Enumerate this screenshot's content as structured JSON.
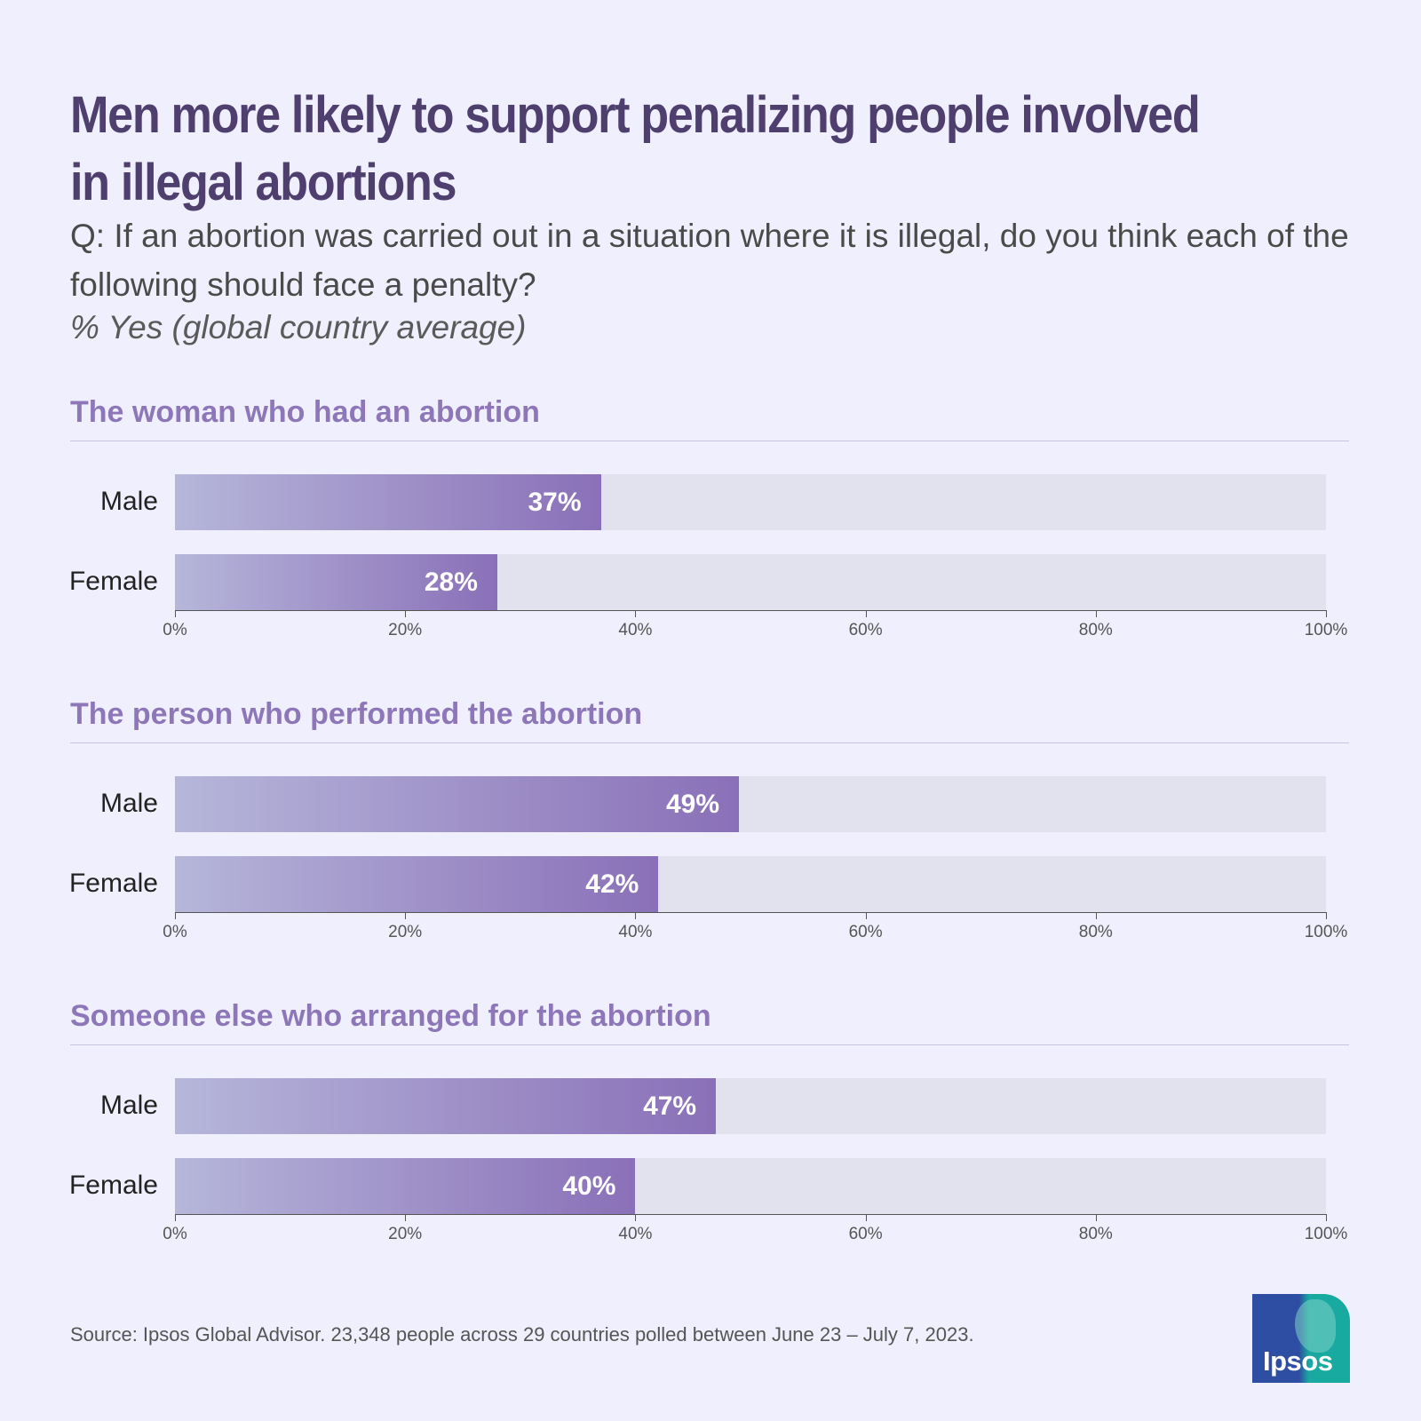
{
  "title": "Men more likely to support penalizing people involved in illegal abortions",
  "question": "Q: If an abortion was carried out in a situation where it is illegal, do you think each of the following should face a penalty?",
  "subtitle": "% Yes (global country average)",
  "source": "Source: Ipsos Global Advisor. 23,348 people across 29 countries polled between June 23 – July 7, 2023.",
  "logo_text": "Ipsos",
  "colors": {
    "background": "#f0effd",
    "title": "#4f3f6f",
    "section_title": "#8d77b8",
    "bar_start": "#b6b6da",
    "bar_end": "#8a70b8",
    "track": "#e2e1ee"
  },
  "chart_data": [
    {
      "type": "bar",
      "orientation": "horizontal",
      "title": "The woman who had an abortion",
      "categories": [
        "Male",
        "Female"
      ],
      "values": [
        37,
        28
      ],
      "value_labels": [
        "37%",
        "28%"
      ],
      "xlim": [
        0,
        100
      ],
      "ticks": [
        "0%",
        "20%",
        "40%",
        "60%",
        "80%",
        "100%"
      ]
    },
    {
      "type": "bar",
      "orientation": "horizontal",
      "title": "The person who performed the abortion",
      "categories": [
        "Male",
        "Female"
      ],
      "values": [
        49,
        42
      ],
      "value_labels": [
        "49%",
        "42%"
      ],
      "xlim": [
        0,
        100
      ],
      "ticks": [
        "0%",
        "20%",
        "40%",
        "60%",
        "80%",
        "100%"
      ]
    },
    {
      "type": "bar",
      "orientation": "horizontal",
      "title": "Someone else who arranged for the abortion",
      "categories": [
        "Male",
        "Female"
      ],
      "values": [
        47,
        40
      ],
      "value_labels": [
        "47%",
        "40%"
      ],
      "xlim": [
        0,
        100
      ],
      "ticks": [
        "0%",
        "20%",
        "40%",
        "60%",
        "80%",
        "100%"
      ]
    }
  ]
}
